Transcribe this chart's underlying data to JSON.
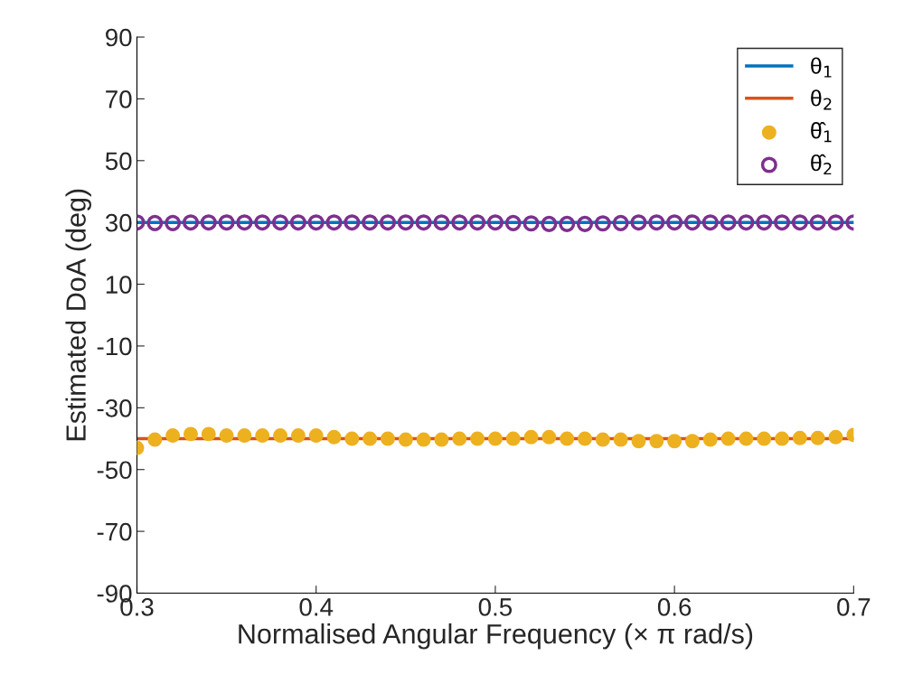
{
  "chart_data": {
    "type": "line",
    "xlabel": "Normalised Angular Frequency (× π rad/s)",
    "ylabel": "Estimated DoA (deg)",
    "x": [
      0.3,
      0.31,
      0.32,
      0.33,
      0.34,
      0.35,
      0.36,
      0.37,
      0.38,
      0.39,
      0.4,
      0.41,
      0.42,
      0.43,
      0.44,
      0.45,
      0.46,
      0.47,
      0.48,
      0.49,
      0.5,
      0.51,
      0.52,
      0.53,
      0.54,
      0.55,
      0.56,
      0.57,
      0.58,
      0.59,
      0.6,
      0.61,
      0.62,
      0.63,
      0.64,
      0.65,
      0.66,
      0.67,
      0.68,
      0.69,
      0.7
    ],
    "series": [
      {
        "name": "θ$_{1}$",
        "marker": "none",
        "color": "#0072bd",
        "values": [
          30,
          30,
          30,
          30,
          30,
          30,
          30,
          30,
          30,
          30,
          30,
          30,
          30,
          30,
          30,
          30,
          30,
          30,
          30,
          30,
          30,
          30,
          30,
          30,
          30,
          30,
          30,
          30,
          30,
          30,
          30,
          30,
          30,
          30,
          30,
          30,
          30,
          30,
          30,
          30,
          30
        ]
      },
      {
        "name": "θ$_{2}$",
        "marker": "none",
        "color": "#d95319",
        "values": [
          -40,
          -40,
          -40,
          -40,
          -40,
          -40,
          -40,
          -40,
          -40,
          -40,
          -40,
          -40,
          -40,
          -40,
          -40,
          -40,
          -40,
          -40,
          -40,
          -40,
          -40,
          -40,
          -40,
          -40,
          -40,
          -40,
          -40,
          -40,
          -40,
          -40,
          -40,
          -40,
          -40,
          -40,
          -40,
          -40,
          -40,
          -40,
          -40,
          -40,
          -40
        ]
      },
      {
        "name": "θ̂$_{1}$",
        "type": "scatter",
        "marker": "circle",
        "color": "#edb120",
        "values": [
          -43,
          -40.3,
          -39,
          -38.5,
          -38.5,
          -39,
          -39,
          -39,
          -39,
          -39,
          -39,
          -39.5,
          -40,
          -40,
          -40,
          -40.3,
          -40.3,
          -40.3,
          -40,
          -40,
          -40,
          -40,
          -39.5,
          -39.5,
          -40,
          -40,
          -40.3,
          -40.3,
          -40.8,
          -40.8,
          -40.8,
          -40.8,
          -40.3,
          -40,
          -40,
          -40,
          -40,
          -39.8,
          -39.8,
          -39.5,
          -38.8
        ]
      },
      {
        "name": "θ̂$_{2}$",
        "type": "scatter",
        "marker": "circle",
        "color": "#7e2f8e",
        "values": [
          30,
          29.8,
          29.8,
          30,
          30,
          30,
          30,
          30,
          30,
          30,
          30,
          30,
          30,
          30,
          30,
          30,
          30,
          30,
          30,
          30,
          30,
          29.8,
          29.7,
          29.5,
          29.5,
          29.5,
          29.7,
          29.8,
          30,
          30,
          30,
          30,
          30,
          30,
          30,
          30,
          30,
          30,
          30,
          30,
          30
        ]
      }
    ],
    "xlim": [
      0.3,
      0.7
    ],
    "xticks": [
      0.3,
      0.4,
      0.5,
      0.6,
      0.7
    ],
    "ylim": [
      -90,
      90
    ],
    "yticks": [
      -90,
      -70,
      -50,
      -30,
      -10,
      10,
      30,
      50,
      70,
      90
    ],
    "grid": false,
    "legend": "top right"
  }
}
